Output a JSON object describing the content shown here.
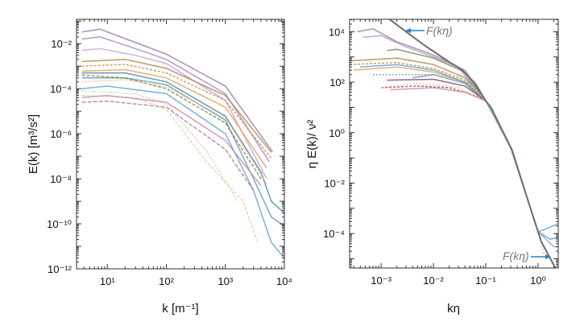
{
  "chart_data": [
    {
      "type": "line",
      "xscale": "log",
      "yscale": "log",
      "xlabel": "k [m⁻¹]",
      "ylabel": "E(k) [m³/s²]",
      "xlim": [
        3,
        10000
      ],
      "ylim": [
        1e-12,
        0.12
      ],
      "xticks": [
        {
          "v": 10,
          "label": "10¹"
        },
        {
          "v": 100,
          "label": "10²"
        },
        {
          "v": 1000,
          "label": "10³"
        },
        {
          "v": 10000,
          "label": "10⁴"
        }
      ],
      "yticks": [
        {
          "v": 0.01,
          "label": "10⁻²"
        },
        {
          "v": 0.0001,
          "label": "10⁻⁴"
        },
        {
          "v": 1e-06,
          "label": "10⁻⁶"
        },
        {
          "v": 1e-08,
          "label": "10⁻⁸"
        },
        {
          "v": 1e-10,
          "label": "10⁻¹⁰"
        },
        {
          "v": 1e-12,
          "label": "10⁻¹²"
        }
      ],
      "grid": false,
      "series": [
        {
          "color": "#9a7cb0",
          "dash": "",
          "points": [
            [
              3.7,
              0.033
            ],
            [
              7.5,
              0.044
            ],
            [
              28,
              0.012
            ],
            [
              100,
              0.0034
            ],
            [
              1000,
              0.00013
            ],
            [
              6300,
              1.6e-07
            ]
          ]
        },
        {
          "color": "#a888bd",
          "dash": "",
          "points": [
            [
              3.7,
              0.016
            ],
            [
              7.5,
              0.02
            ],
            [
              30,
              0.006
            ],
            [
              100,
              0.002
            ],
            [
              1000,
              6e-05
            ],
            [
              5500,
              6e-08
            ]
          ]
        },
        {
          "color": "#c6a6d6",
          "dash": "",
          "points": [
            [
              3.7,
              0.005
            ],
            [
              7.5,
              0.006
            ],
            [
              30,
              0.003
            ],
            [
              100,
              0.0013
            ],
            [
              1000,
              3e-05
            ],
            [
              5000,
              1e-08
            ]
          ]
        },
        {
          "color": "#b5884a",
          "dash": "",
          "points": [
            [
              3.7,
              0.0016
            ],
            [
              20,
              0.002
            ],
            [
              100,
              0.0008
            ],
            [
              1000,
              5e-05
            ],
            [
              6000,
              1.5e-07
            ]
          ]
        },
        {
          "color": "#b98f55",
          "dash": "3,2",
          "points": [
            [
              3.7,
              0.001
            ],
            [
              20,
              0.0012
            ],
            [
              100,
              0.0005
            ],
            [
              1000,
              3e-05
            ],
            [
              6000,
              8e-08
            ]
          ]
        },
        {
          "color": "#e0a456",
          "dash": "",
          "points": [
            [
              3.7,
              0.0006
            ],
            [
              20,
              0.0007
            ],
            [
              100,
              0.0003
            ],
            [
              1000,
              1.5e-05
            ],
            [
              5000,
              3e-08
            ]
          ]
        },
        {
          "color": "#4a8aa8",
          "dash": "",
          "points": [
            [
              3.7,
              0.0005
            ],
            [
              20,
              0.0005
            ],
            [
              100,
              0.0002
            ],
            [
              1000,
              6e-06
            ],
            [
              4000,
              2e-08
            ],
            [
              6000,
              1e-09
            ],
            [
              10000,
              3e-10
            ]
          ]
        },
        {
          "color": "#6a98b8",
          "dash": "",
          "points": [
            [
              3.7,
              0.0003
            ],
            [
              20,
              0.0003
            ],
            [
              100,
              0.00015
            ],
            [
              1000,
              4e-06
            ],
            [
              3000,
              1e-08
            ],
            [
              6000,
              2e-10
            ],
            [
              10000,
              8e-11
            ]
          ]
        },
        {
          "color": "#5aa8d8",
          "dash": "",
          "points": [
            [
              3.7,
              0.0001
            ],
            [
              10,
              0.00013
            ],
            [
              100,
              6e-05
            ],
            [
              1000,
              1e-06
            ],
            [
              3000,
              3e-09
            ],
            [
              6000,
              1.5e-11
            ],
            [
              10000,
              3e-12
            ]
          ]
        },
        {
          "color": "#7a8a50",
          "dash": "4,2",
          "points": [
            [
              3.7,
              0.0004
            ],
            [
              20,
              0.0003
            ],
            [
              100,
              0.0001
            ],
            [
              1000,
              3e-06
            ],
            [
              4000,
              1e-08
            ]
          ]
        },
        {
          "color": "#b8d890",
          "dash": "2,2",
          "points": [
            [
              3.7,
              8e-05
            ],
            [
              30,
              6e-05
            ],
            [
              100,
              2e-05
            ],
            [
              500,
              1.5e-07
            ],
            [
              1600,
              1e-09
            ]
          ]
        },
        {
          "color": "#c5e0a0",
          "dash": "4,2",
          "points": [
            [
              3.7,
              5e-05
            ],
            [
              30,
              4e-05
            ],
            [
              100,
              1.2e-05
            ],
            [
              500,
              5e-08
            ],
            [
              2000,
              1e-09
            ],
            [
              3500,
              1.5e-11
            ]
          ]
        },
        {
          "color": "#c07a90",
          "dash": "5,2",
          "points": [
            [
              3.7,
              2.5e-05
            ],
            [
              10,
              2.8e-05
            ],
            [
              100,
              1.5e-05
            ],
            [
              1000,
              2e-07
            ],
            [
              3000,
              3e-09
            ]
          ]
        },
        {
          "color": "#d08aa8",
          "dash": "",
          "points": [
            [
              3.7,
              4e-05
            ],
            [
              10,
              5e-05
            ],
            [
              100,
              2.5e-05
            ],
            [
              1000,
              5e-07
            ],
            [
              4000,
              5e-09
            ]
          ]
        },
        {
          "color": "#f0b870",
          "dash": "2,2",
          "points": [
            [
              3.7,
              0.0002
            ],
            [
              20,
              0.00025
            ],
            [
              100,
              0.00012
            ],
            [
              1000,
              5e-06
            ],
            [
              5000,
              6e-09
            ]
          ]
        }
      ]
    },
    {
      "type": "line",
      "xscale": "log",
      "yscale": "log",
      "xlabel": "kη",
      "ylabel": "η E(k)/ ν²",
      "xlim": [
        0.00025,
        2.43
      ],
      "ylim": [
        4.3e-06,
        31000
      ],
      "xticks": [
        {
          "v": 0.001,
          "label": "10⁻³"
        },
        {
          "v": 0.01,
          "label": "10⁻²"
        },
        {
          "v": 0.1,
          "label": "10⁻¹"
        },
        {
          "v": 1,
          "label": "10⁰"
        }
      ],
      "yticks": [
        {
          "v": 10000,
          "label": "10⁴"
        },
        {
          "v": 100,
          "label": "10²"
        },
        {
          "v": 1,
          "label": "10⁰"
        },
        {
          "v": 0.01,
          "label": "10⁻²"
        },
        {
          "v": 0.0001,
          "label": "10⁻⁴"
        }
      ],
      "grid": false,
      "reference": {
        "name": "F(kη)",
        "color": "#6e6e6e",
        "points": [
          [
            0.00145,
            31000
          ],
          [
            0.0063,
            3200
          ],
          [
            0.02,
            630
          ],
          [
            0.035,
            316
          ],
          [
            0.063,
            89
          ],
          [
            0.1,
            18
          ],
          [
            0.126,
            10
          ],
          [
            0.32,
            0.2
          ],
          [
            0.63,
            0.0023
          ],
          [
            1.15,
            4.8e-05
          ],
          [
            2.15,
            4.3e-06
          ]
        ]
      },
      "annotations": [
        {
          "text": "F(kη)",
          "arrow": "left",
          "arrow_color": "#2a7fc8"
        },
        {
          "text": "F(kη)",
          "arrow": "right",
          "arrow_color": "#2a7fc8"
        }
      ],
      "series": [
        {
          "color": "#9a7cb0",
          "dash": "",
          "points": [
            [
              0.00035,
              10000
            ],
            [
              0.0007,
              13000
            ],
            [
              0.002,
              4000
            ],
            [
              0.01,
              1200
            ],
            [
              0.03,
              400
            ],
            [
              0.1,
              18
            ],
            [
              0.3,
              0.25
            ],
            [
              1,
              0.00012
            ]
          ]
        },
        {
          "color": "#b898c8",
          "dash": "",
          "points": [
            [
              0.00045,
              6000
            ],
            [
              0.001,
              7000
            ],
            [
              0.003,
              2500
            ],
            [
              0.01,
              1000
            ],
            [
              0.04,
              300
            ],
            [
              0.1,
              18
            ],
            [
              0.3,
              0.25
            ]
          ]
        },
        {
          "color": "#7a8a50",
          "dash": "",
          "points": [
            [
              0.0013,
              1800
            ],
            [
              0.002,
              2000
            ],
            [
              0.01,
              900
            ],
            [
              0.04,
              250
            ],
            [
              0.1,
              18
            ]
          ]
        },
        {
          "color": "#b5884a",
          "dash": "",
          "points": [
            [
              0.00025,
              700
            ],
            [
              0.002,
              900
            ],
            [
              0.01,
              500
            ],
            [
              0.04,
              150
            ],
            [
              0.1,
              18
            ],
            [
              0.3,
              0.25
            ],
            [
              1,
              0.00012
            ]
          ]
        },
        {
          "color": "#b98f55",
          "dash": "3,2",
          "points": [
            [
              0.00025,
              500
            ],
            [
              0.002,
              600
            ],
            [
              0.01,
              350
            ],
            [
              0.04,
              120
            ],
            [
              0.1,
              18
            ]
          ]
        },
        {
          "color": "#e0a456",
          "dash": "",
          "points": [
            [
              0.0003,
              300
            ],
            [
              0.002,
              400
            ],
            [
              0.01,
              250
            ],
            [
              0.04,
              100
            ],
            [
              0.1,
              18
            ],
            [
              0.3,
              0.25
            ]
          ]
        },
        {
          "color": "#5aa0d0",
          "dash": "",
          "points": [
            [
              0.0004,
              400
            ],
            [
              0.002,
              500
            ],
            [
              0.01,
              300
            ],
            [
              0.04,
              100
            ],
            [
              0.1,
              18
            ],
            [
              0.3,
              0.25
            ],
            [
              1,
              0.00012
            ],
            [
              1.5,
              0.00016
            ],
            [
              2.43,
              0.00025
            ]
          ]
        },
        {
          "color": "#6a98b8",
          "dash": "",
          "points": [
            [
              0.004,
              150
            ],
            [
              0.01,
              200
            ],
            [
              0.04,
              90
            ],
            [
              0.1,
              18
            ],
            [
              0.3,
              0.25
            ],
            [
              1,
              0.00012
            ],
            [
              1.7,
              6e-05
            ],
            [
              2.43,
              7e-05
            ]
          ]
        },
        {
          "color": "#7aaecc",
          "dash": "",
          "points": [
            [
              0.1,
              18
            ],
            [
              0.3,
              0.25
            ],
            [
              1,
              0.00012
            ],
            [
              2.0,
              3e-05
            ],
            [
              2.43,
              3e-05
            ]
          ]
        },
        {
          "color": "#8a5070",
          "dash": "3,2",
          "points": [
            [
              0.001,
              60
            ],
            [
              0.005,
              70
            ],
            [
              0.02,
              60
            ],
            [
              0.05,
              35
            ],
            [
              0.1,
              18
            ]
          ]
        },
        {
          "color": "#7a4a7a",
          "dash": "",
          "points": [
            [
              0.0013,
              120
            ],
            [
              0.01,
              130
            ],
            [
              0.04,
              70
            ],
            [
              0.1,
              18
            ]
          ]
        },
        {
          "color": "#d08aa8",
          "dash": "",
          "points": [
            [
              0.0015,
              50
            ],
            [
              0.01,
              60
            ],
            [
              0.04,
              40
            ],
            [
              0.1,
              18
            ]
          ]
        },
        {
          "color": "#f0b870",
          "dash": "2,2",
          "points": [
            [
              0.001,
              60
            ],
            [
              0.005,
              90
            ],
            [
              0.03,
              60
            ],
            [
              0.1,
              18
            ]
          ]
        },
        {
          "color": "#999999",
          "dash": "2,2",
          "points": [
            [
              0.0007,
              200
            ],
            [
              0.01,
              200
            ],
            [
              0.04,
              90
            ],
            [
              0.1,
              18
            ]
          ]
        },
        {
          "color": "#b8d890",
          "dash": "2,2",
          "points": [
            [
              0.03,
              180
            ],
            [
              0.06,
              60
            ],
            [
              0.1,
              18
            ],
            [
              0.3,
              0.25
            ],
            [
              1,
              0.00012
            ],
            [
              1.3,
              1.5e-05
            ]
          ]
        }
      ]
    }
  ]
}
